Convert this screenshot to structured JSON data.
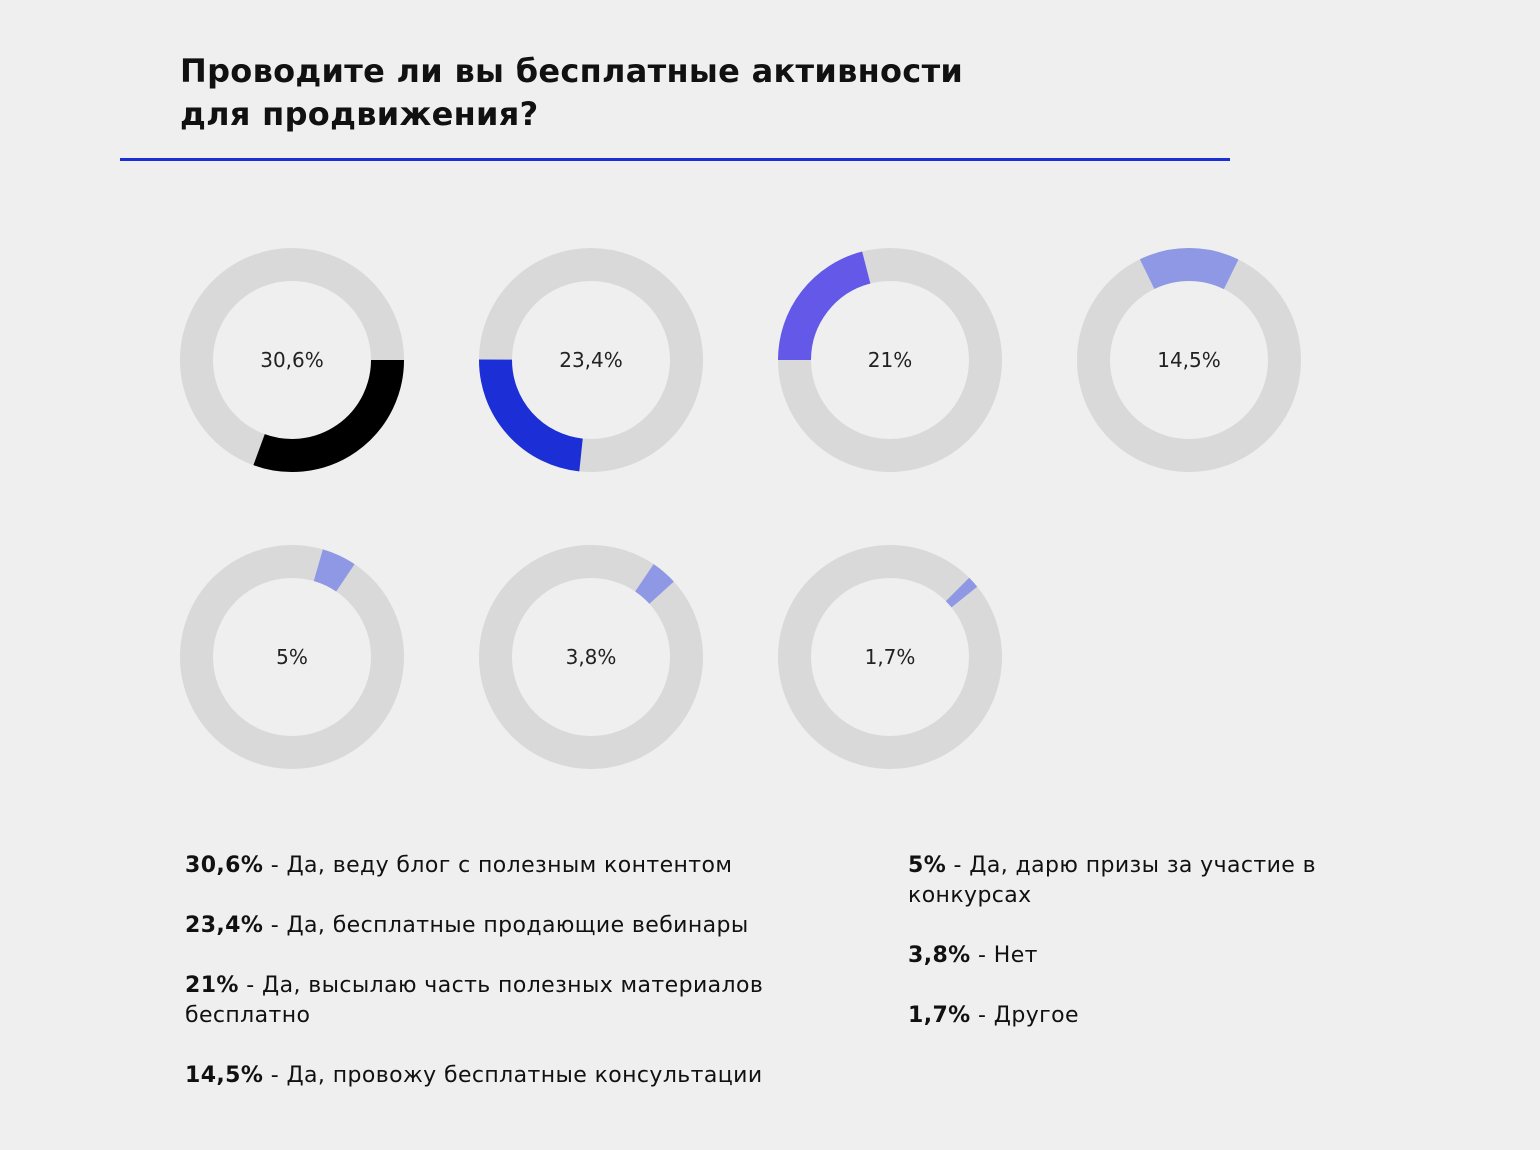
{
  "title_line1": "Проводите ли вы бесплатные активности",
  "title_line2": "для продвижения?",
  "chart_data": {
    "type": "donut",
    "title": "Проводите ли вы бесплатные активности для продвижения?",
    "track_color": "#d9d9d9",
    "items": [
      {
        "label": "30,6%",
        "value": 30.6,
        "start_deg": 90,
        "color": "#000000",
        "pct": "30,6%",
        "text": "Да, веду блог с полезным контентом"
      },
      {
        "label": "23,4%",
        "value": 23.4,
        "start_deg": 186,
        "color": "#1c2fd6",
        "pct": "23,4%",
        "text": "Да, бесплатные продающие вебинары"
      },
      {
        "label": "21%",
        "value": 21,
        "start_deg": 270,
        "color": "#6358e8",
        "pct": "21%",
        "text": "Да, высылаю часть полезных материалов бесплатно"
      },
      {
        "label": "14,5%",
        "value": 14.5,
        "start_deg": -26,
        "color": "#8e98e4",
        "pct": "14,5%",
        "text": "Да, провожу бесплатные консультации"
      },
      {
        "label": "5%",
        "value": 5,
        "start_deg": 16,
        "color": "#8e98e4",
        "pct": "5%",
        "text": "Да, дарю призы за участие в конкурсах"
      },
      {
        "label": "3,8%",
        "value": 3.8,
        "start_deg": 34,
        "color": "#8e98e4",
        "pct": "3,8%",
        "text": "Нет"
      },
      {
        "label": "1,7%",
        "value": 1.7,
        "start_deg": 45,
        "color": "#8e98e4",
        "pct": "1,7%",
        "text": "Другое"
      }
    ]
  }
}
